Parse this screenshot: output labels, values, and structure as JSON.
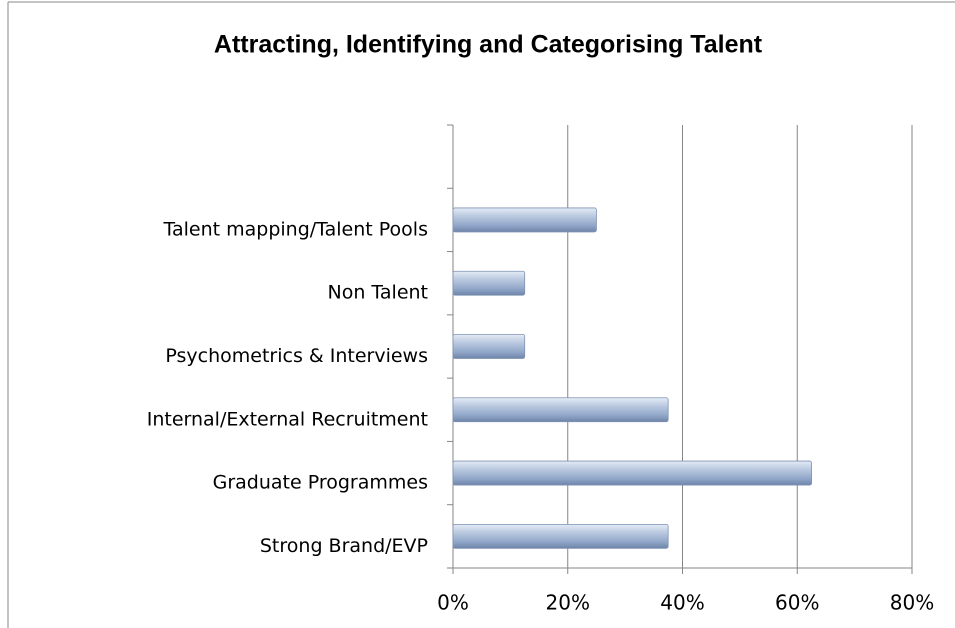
{
  "chart_data": {
    "type": "bar",
    "orientation": "horizontal",
    "title": "Attracting, Identifying and Categorising Talent",
    "categories": [
      "Strong Brand/EVP",
      "Graduate Programmes",
      "Internal/External Recruitment",
      "Psychometrics & Interviews",
      "Non Talent",
      "Talent mapping/Talent Pools",
      null
    ],
    "values": [
      37.5,
      62.5,
      37.5,
      12.5,
      12.5,
      25,
      null
    ],
    "color": "#9fb3d3",
    "xlim": [
      0,
      80
    ],
    "xticks": [
      {
        "value": 0,
        "label": "0%"
      },
      {
        "value": 20,
        "label": "20%"
      },
      {
        "value": 40,
        "label": "40%"
      },
      {
        "value": 60,
        "label": "60%"
      },
      {
        "value": 80,
        "label": "80%"
      }
    ],
    "grid": true
  }
}
